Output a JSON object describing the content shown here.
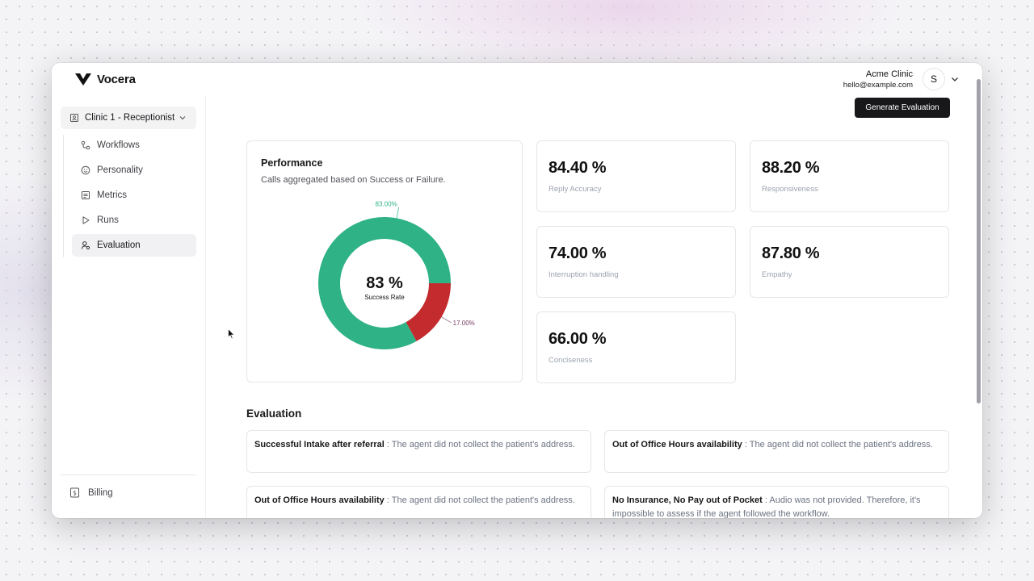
{
  "app": {
    "name": "Vocera"
  },
  "account": {
    "name": "Acme Clinic",
    "email": "hello@example.com",
    "avatar_initial": "S"
  },
  "sidebar": {
    "workspace": "Clinic 1 - Receptionist",
    "items": [
      {
        "label": "Workflows",
        "icon": "workflow-icon"
      },
      {
        "label": "Personality",
        "icon": "smiley-icon"
      },
      {
        "label": "Metrics",
        "icon": "metrics-icon"
      },
      {
        "label": "Runs",
        "icon": "play-icon"
      },
      {
        "label": "Evaluation",
        "icon": "user-eval-icon",
        "active": true
      }
    ],
    "billing": "Billing"
  },
  "actions": {
    "generate_evaluation": "Generate Evaluation"
  },
  "performance": {
    "title": "Performance",
    "subtitle": "Calls aggregated based on Success or Failure.",
    "center_value": "83 %",
    "center_label": "Success Rate",
    "chart_data": {
      "type": "pie",
      "categories": [
        "Success",
        "Failure"
      ],
      "values": [
        83,
        17
      ],
      "slice_labels": [
        "83.00%",
        "17.00%"
      ],
      "colors": [
        "#2eb286",
        "#c42b2e"
      ]
    }
  },
  "metrics": [
    {
      "value": "84.40 %",
      "label": "Reply Accuracy"
    },
    {
      "value": "88.20 %",
      "label": "Responsiveness"
    },
    {
      "value": "74.00 %",
      "label": "Interruption handling"
    },
    {
      "value": "87.80 %",
      "label": "Empathy"
    },
    {
      "value": "66.00 %",
      "label": "Conciseness"
    }
  ],
  "evaluation": {
    "title": "Evaluation",
    "items": [
      {
        "name": "Successful Intake after referral",
        "text": " : The agent did not collect the patient's address."
      },
      {
        "name": "Out of Office Hours availability",
        "text": " : The agent did not collect the patient's address."
      },
      {
        "name": "Out of Office Hours availability",
        "text": " : The agent did not collect the patient's address."
      },
      {
        "name": "No Insurance, No Pay out of Pocket",
        "text": " : Audio was not provided. Therefore, it's impossible to assess if the agent followed the workflow."
      }
    ]
  }
}
